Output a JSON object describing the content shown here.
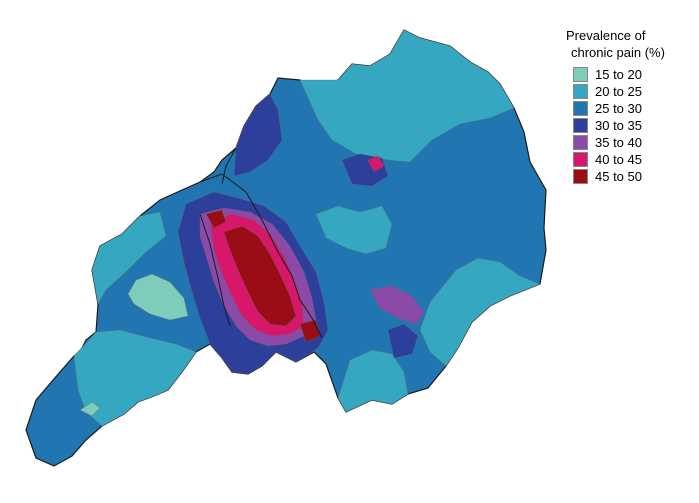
{
  "legend": {
    "title_line1": "Prevalence of",
    "title_line2": "chronic pain (%)",
    "items": [
      {
        "label": "15 to 20",
        "color": "#7ecdbb"
      },
      {
        "label": "20 to 25",
        "color": "#36a7c1"
      },
      {
        "label": "25 to 30",
        "color": "#2176b2"
      },
      {
        "label": "30 to 35",
        "color": "#2c3f9a"
      },
      {
        "label": "35 to 40",
        "color": "#8c4aa8"
      },
      {
        "label": "40 to 45",
        "color": "#d6176a"
      },
      {
        "label": "45 to 50",
        "color": "#9b0d16"
      }
    ]
  },
  "map": {
    "background": "#ffffff",
    "outline_color": "#1a1a1a",
    "inner_border_color": "#666666"
  }
}
